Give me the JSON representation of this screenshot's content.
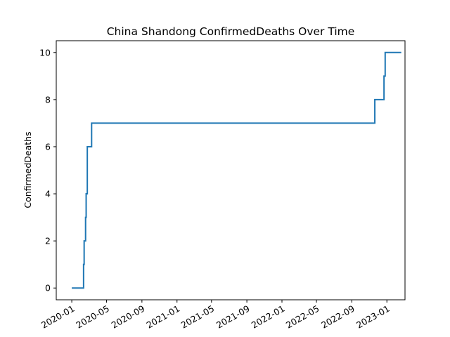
{
  "chart_data": {
    "type": "line",
    "title": "China Shandong ConfirmedDeaths Over Time",
    "xlabel": "",
    "ylabel": "ConfirmedDeaths",
    "x_type": "date",
    "xlim": [
      "2019-11-08",
      "2023-03-05"
    ],
    "ylim": [
      -0.5,
      10.5
    ],
    "x_ticks": [
      "2020-01",
      "2020-05",
      "2020-09",
      "2021-01",
      "2021-05",
      "2021-09",
      "2022-01",
      "2022-05",
      "2022-09",
      "2023-01"
    ],
    "y_ticks": [
      0,
      2,
      4,
      6,
      8,
      10
    ],
    "grid": false,
    "legend": "none",
    "series": [
      {
        "color": "#1f77b4",
        "step": true,
        "points": [
          [
            "2020-01-01",
            0
          ],
          [
            "2020-02-11",
            1
          ],
          [
            "2020-02-13",
            2
          ],
          [
            "2020-02-18",
            3
          ],
          [
            "2020-02-20",
            4
          ],
          [
            "2020-02-24",
            6
          ],
          [
            "2020-03-10",
            7
          ],
          [
            "2022-11-20",
            8
          ],
          [
            "2022-12-22",
            9
          ],
          [
            "2022-12-26",
            10
          ],
          [
            "2023-02-20",
            10
          ]
        ]
      }
    ]
  }
}
